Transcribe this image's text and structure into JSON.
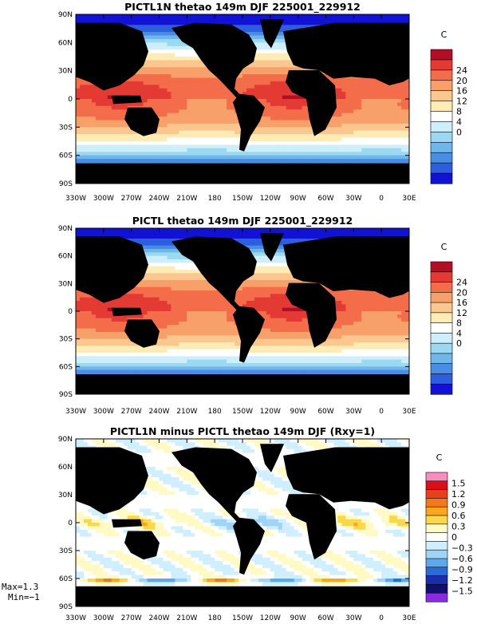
{
  "chart_data": [
    {
      "type": "heatmap",
      "title": "PICTL1N thetao 149m DJF 225001_229912",
      "units": "C",
      "xticks": [
        "330W",
        "300W",
        "270W",
        "240W",
        "210W",
        "180",
        "150W",
        "120W",
        "90W",
        "60W",
        "30W",
        "0",
        "30E"
      ],
      "yticks": [
        "90N",
        "60N",
        "30N",
        "0",
        "30S",
        "60S",
        "90S"
      ],
      "colorbar_labels": [
        "24",
        "20",
        "16",
        "12",
        "8",
        "4",
        "0"
      ],
      "colorbar_colors": [
        "#b10f26",
        "#e33a33",
        "#f46d4b",
        "#f8a06a",
        "#fcc78e",
        "#feebb5",
        "#ffffff",
        "#cdeefa",
        "#9bd8f2",
        "#6fb6ec",
        "#4a8de4",
        "#2e5ee0",
        "#1212d6"
      ],
      "field": "full"
    },
    {
      "type": "heatmap",
      "title": "PICTL thetao 149m DJF 225001_229912",
      "units": "C",
      "xticks": [
        "330W",
        "300W",
        "270W",
        "240W",
        "210W",
        "180",
        "150W",
        "120W",
        "90W",
        "60W",
        "30W",
        "0",
        "30E"
      ],
      "yticks": [
        "90N",
        "60N",
        "30N",
        "0",
        "30S",
        "60S",
        "90S"
      ],
      "colorbar_labels": [
        "24",
        "20",
        "16",
        "12",
        "8",
        "4",
        "0"
      ],
      "colorbar_colors": [
        "#b10f26",
        "#e33a33",
        "#f46d4b",
        "#f8a06a",
        "#fcc78e",
        "#feebb5",
        "#ffffff",
        "#cdeefa",
        "#9bd8f2",
        "#6fb6ec",
        "#4a8de4",
        "#2e5ee0",
        "#1212d6"
      ],
      "field": "full"
    },
    {
      "type": "heatmap",
      "title": "PICTL1N minus PICTL thetao 149m DJF (Rxy=1)",
      "units": "C",
      "xticks": [
        "330W",
        "300W",
        "270W",
        "240W",
        "210W",
        "180",
        "150W",
        "120W",
        "90W",
        "60W",
        "30W",
        "0",
        "30E"
      ],
      "yticks": [
        "90N",
        "60N",
        "30N",
        "0",
        "30S",
        "60S",
        "90S"
      ],
      "colorbar_labels": [
        "1.5",
        "1.2",
        "0.9",
        "0.6",
        "0.3",
        "0",
        "−0.3",
        "−0.6",
        "−0.9",
        "−1.2",
        "−1.5"
      ],
      "colorbar_colors": [
        "#f48fc0",
        "#d9101a",
        "#e8401f",
        "#f0781f",
        "#f7a81f",
        "#fcd74a",
        "#fff9c4",
        "#ffffff",
        "#cfeefe",
        "#9fd4f6",
        "#5fa8ec",
        "#2c6bd6",
        "#1a2fa8",
        "#10106e",
        "#8a2be2"
      ],
      "field": "diff",
      "max_label": "Max=1.3",
      "min_label": "Min=−1"
    }
  ]
}
